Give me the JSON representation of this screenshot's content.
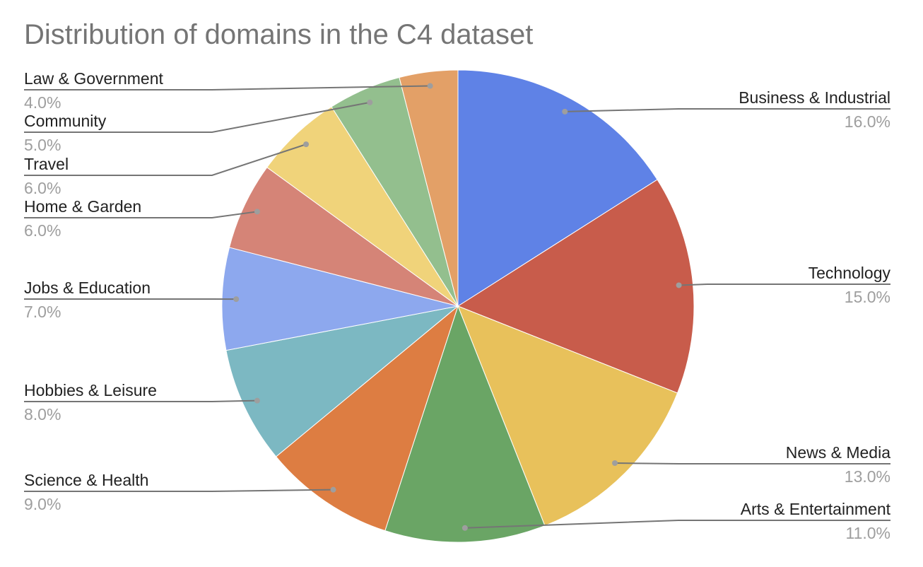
{
  "chart_data": {
    "type": "pie",
    "title": "Distribution of domains in the C4 dataset",
    "start_angle_deg": 0,
    "direction": "clockwise",
    "slices": [
      {
        "label": "Business & Industrial",
        "value": 16.0,
        "display": "16.0%",
        "color": "#5f82e6"
      },
      {
        "label": "Technology",
        "value": 15.0,
        "display": "15.0%",
        "color": "#c85c4b"
      },
      {
        "label": "News & Media",
        "value": 13.0,
        "display": "13.0%",
        "color": "#e8c15b"
      },
      {
        "label": "Arts & Entertainment",
        "value": 11.0,
        "display": "11.0%",
        "color": "#6aa565"
      },
      {
        "label": "Science & Health",
        "value": 9.0,
        "display": "9.0%",
        "color": "#dd7d42"
      },
      {
        "label": "Hobbies & Leisure",
        "value": 8.0,
        "display": "8.0%",
        "color": "#7cb8c2"
      },
      {
        "label": "Jobs & Education",
        "value": 7.0,
        "display": "7.0%",
        "color": "#8da8ee"
      },
      {
        "label": "Home & Garden",
        "value": 6.0,
        "display": "6.0%",
        "color": "#d58477"
      },
      {
        "label": "Travel",
        "value": 6.0,
        "display": "6.0%",
        "color": "#f0d37a"
      },
      {
        "label": "Community",
        "value": 5.0,
        "display": "5.0%",
        "color": "#93bf8e"
      },
      {
        "label": "Law & Government",
        "value": 4.0,
        "display": "4.0%",
        "color": "#e3a067"
      }
    ]
  }
}
